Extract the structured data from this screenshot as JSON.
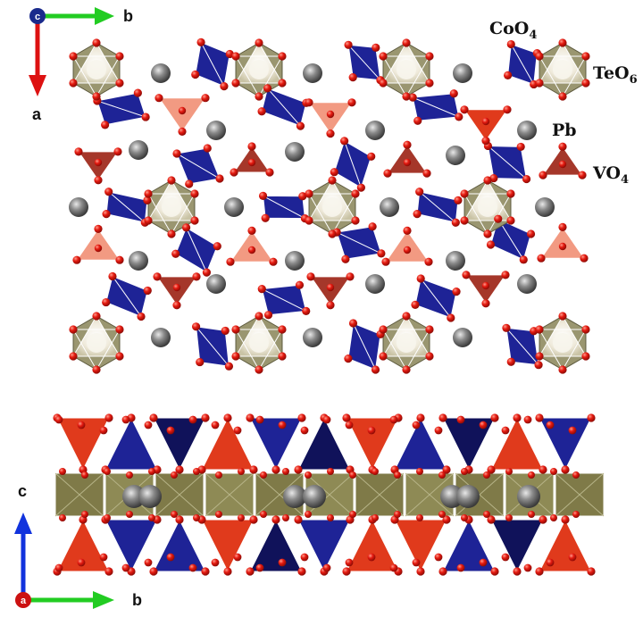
{
  "figure": {
    "top_view": {
      "axes": {
        "origin_label": "c",
        "right_label": "b",
        "down_label": "a",
        "colors": {
          "origin": "#1a2a8c",
          "right": "#22cc22",
          "down": "#dd1111"
        }
      },
      "legend": [
        {
          "key": "coo4",
          "label_main": "CoO",
          "label_sub": "4",
          "color": "#2a2aa8"
        },
        {
          "key": "teo6",
          "label_main": "TeO",
          "label_sub": "6",
          "color": "#8a8760"
        },
        {
          "key": "pb",
          "label_main": "Pb",
          "label_sub": "",
          "color": "#6f6f6f"
        },
        {
          "key": "vo4",
          "label_main": "VO",
          "label_sub": "4",
          "color": "#9c3022"
        }
      ]
    },
    "side_view": {
      "axes": {
        "origin_label": "a",
        "right_label": "b",
        "up_label": "c",
        "colors": {
          "origin": "#cc1111",
          "right": "#22cc22",
          "up": "#1133dd"
        }
      }
    },
    "colors": {
      "co_tetra": "#1e2396",
      "co_tetra_dark": "#10125a",
      "te_oct": "#9a9670",
      "te_oct_light": "#f2efe2",
      "vo4_dark": "#a5372a",
      "vo4_light": "#f29a82",
      "vo4_red": "#e03a1c",
      "pb": "#777777",
      "oxygen": "#e01b12",
      "edge": "#ffffff"
    }
  }
}
